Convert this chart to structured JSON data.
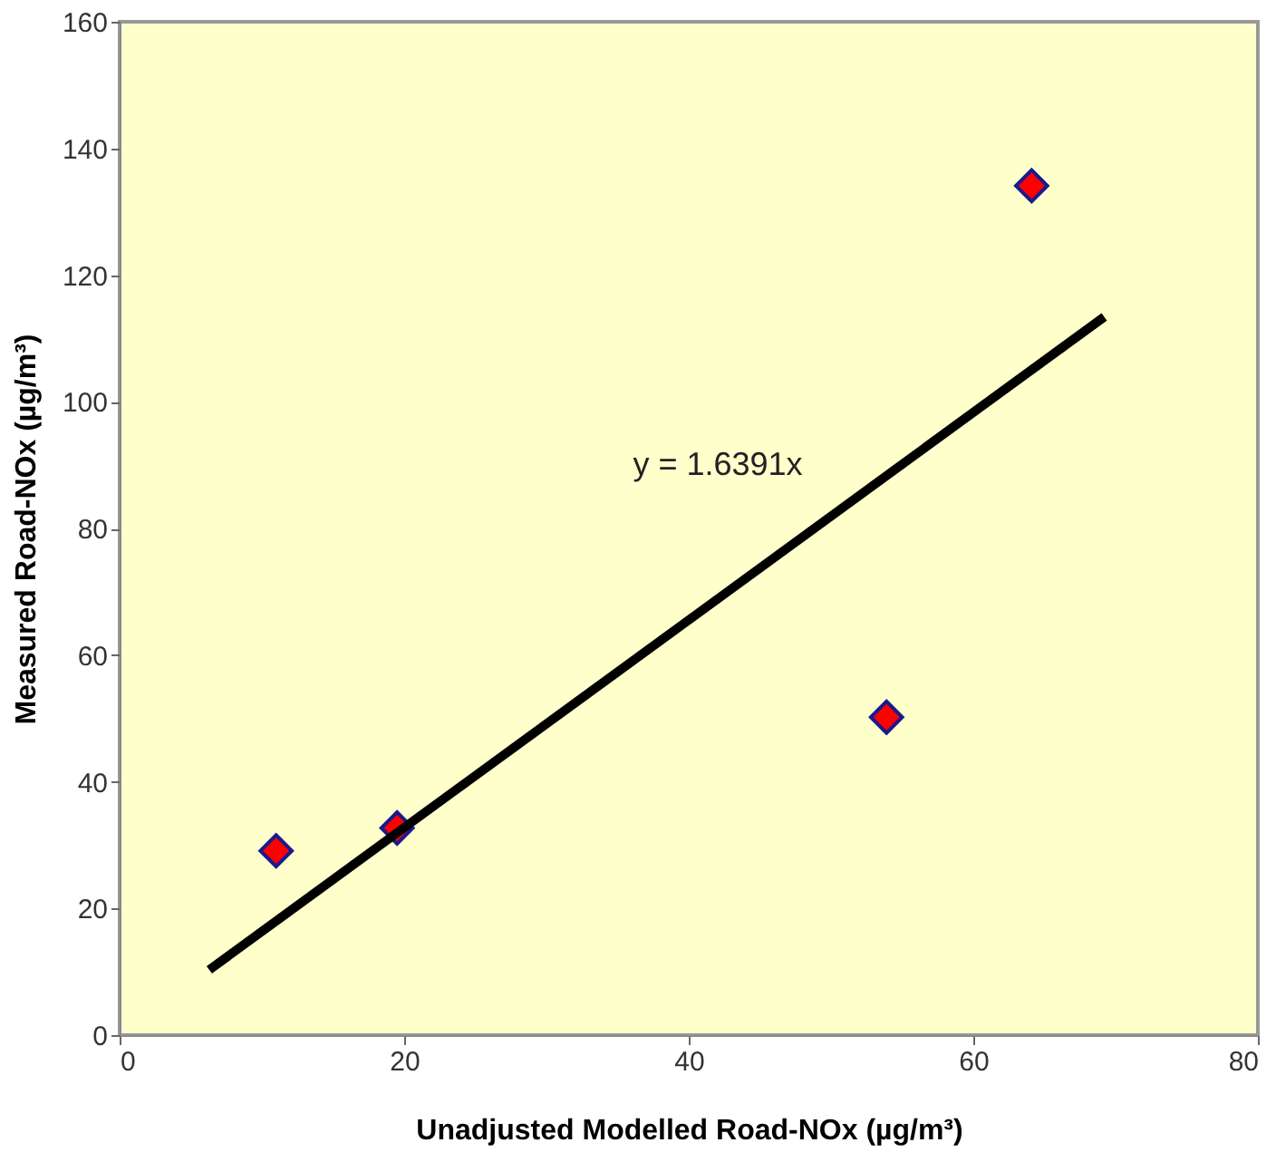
{
  "chart_data": {
    "type": "scatter",
    "xlabel": "Unadjusted Modelled Road-NOx (µg/m³)",
    "ylabel": "Measured Road-NOx (µg/m³)",
    "x": [
      11.0,
      19.5,
      53.9,
      64.1
    ],
    "series": [
      {
        "color": "#ff0000",
        "marker": "diamond",
        "values": [
          29.1,
          32.7,
          50.2,
          134.1
        ]
      },
      {
        "type": "line",
        "color": "#000000",
        "x": [
          6.3,
          69.2
        ],
        "values": [
          10.3,
          113.4
        ],
        "line_style": "solid",
        "marker": "none"
      }
    ],
    "annotations": [
      "y = 1.6391x"
    ],
    "xlim": [
      0,
      80
    ],
    "xticks": [
      0,
      20,
      40,
      60,
      80
    ],
    "ylim": [
      0,
      160
    ],
    "yticks": [
      0,
      20,
      40,
      60,
      80,
      100,
      120,
      140,
      160
    ],
    "grid": false
  }
}
